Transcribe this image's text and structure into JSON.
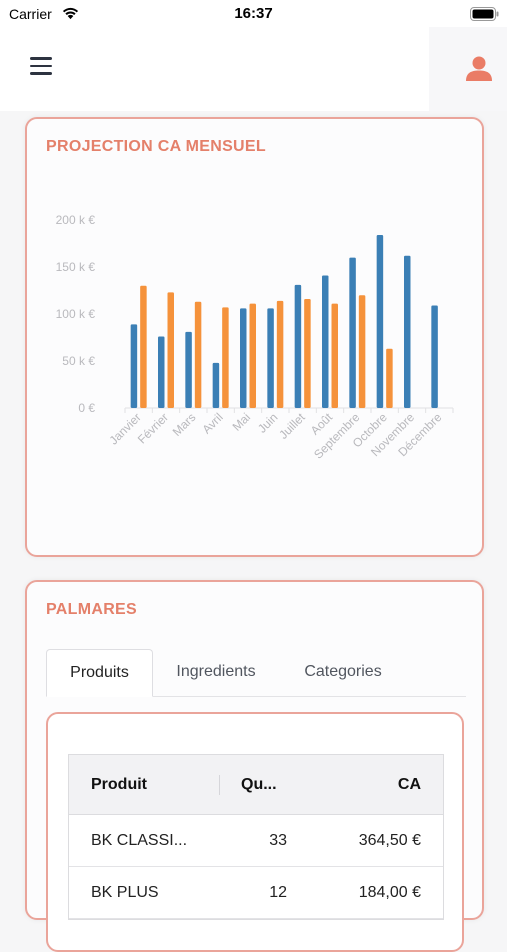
{
  "status_bar": {
    "carrier": "Carrier",
    "time": "16:37"
  },
  "chart_card": {
    "title": "PROJECTION CA MENSUEL"
  },
  "chart_data": {
    "type": "bar",
    "categories": [
      "Janvier",
      "Février",
      "Mars",
      "Avril",
      "Mai",
      "Juin",
      "Juillet",
      "Août",
      "Septembre",
      "Octobre",
      "Novembre",
      "Décembre"
    ],
    "series": [
      {
        "values": [
          89,
          76,
          81,
          48,
          106,
          106,
          131,
          141,
          160,
          184,
          162,
          109
        ],
        "color": "#3b7fb5"
      },
      {
        "values": [
          130,
          123,
          113,
          107,
          111,
          114,
          116,
          111,
          120,
          63,
          null,
          null
        ],
        "color": "#f5923b"
      }
    ],
    "ylim": [
      0,
      200
    ],
    "yticks": [
      "0 €",
      "50 k €",
      "100 k €",
      "150 k €",
      "200 k €"
    ],
    "grid": false
  },
  "palmares": {
    "title": "PALMARES",
    "tabs": [
      "Produits",
      "Ingredients",
      "Categories"
    ],
    "table": {
      "headers": [
        "Produit",
        "Qu...",
        "CA"
      ],
      "rows": [
        [
          "BK CLASSI...",
          "33",
          "364,50 €"
        ],
        [
          "BK PLUS",
          "12",
          "184,00 €"
        ]
      ]
    }
  }
}
